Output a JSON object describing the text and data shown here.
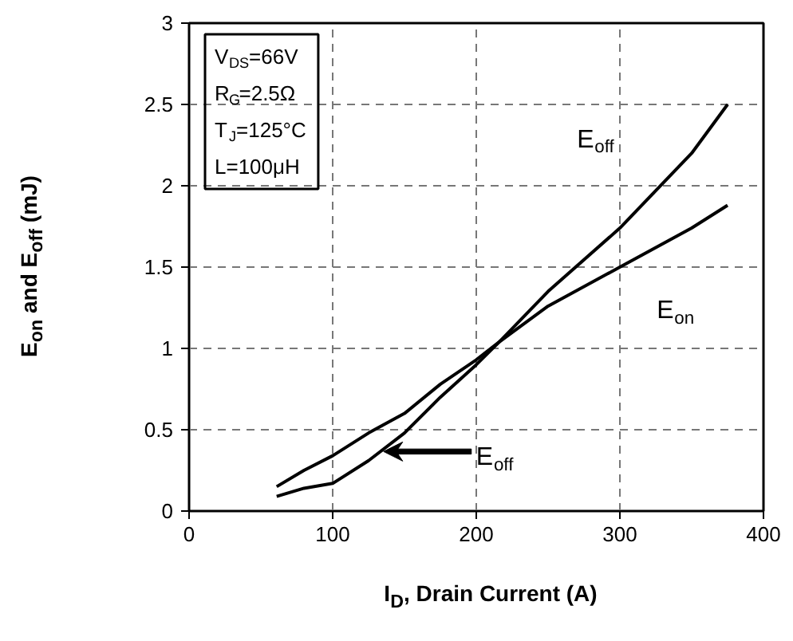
{
  "chart_data": {
    "type": "line",
    "xlabel": "I$_{D}$, Drain Current (A)",
    "ylabel": "E$_{on}$ and E$_{off}$ (mJ)",
    "xlim": [
      0,
      400
    ],
    "xticks": [
      0,
      100,
      200,
      300,
      400
    ],
    "ylim": [
      0,
      3
    ],
    "yticks": [
      0,
      0.5,
      1,
      1.5,
      2,
      2.5,
      3
    ],
    "grid": true,
    "line_style": "solid",
    "marker": "none",
    "series": [
      {
        "name": "E$_{on}$",
        "color": "#000000",
        "x": [
          61,
          80,
          100,
          125,
          150,
          175,
          200,
          216,
          250,
          300,
          350,
          375
        ],
        "values": [
          0.15,
          0.25,
          0.34,
          0.48,
          0.6,
          0.78,
          0.93,
          1.04,
          1.26,
          1.5,
          1.74,
          1.88
        ]
      },
      {
        "name": "E$_{off}$",
        "color": "#000000",
        "x": [
          61,
          80,
          100,
          125,
          150,
          175,
          200,
          216,
          250,
          300,
          350,
          375
        ],
        "values": [
          0.09,
          0.14,
          0.17,
          0.31,
          0.48,
          0.7,
          0.9,
          1.04,
          1.35,
          1.74,
          2.2,
          2.5
        ]
      }
    ],
    "annotations": [
      "V$_{DS}$=66V",
      "R$_{G}$=2.5Ω",
      "T$_{J}$=125°C",
      "L=100μH",
      "E$_{off}$"
    ]
  }
}
